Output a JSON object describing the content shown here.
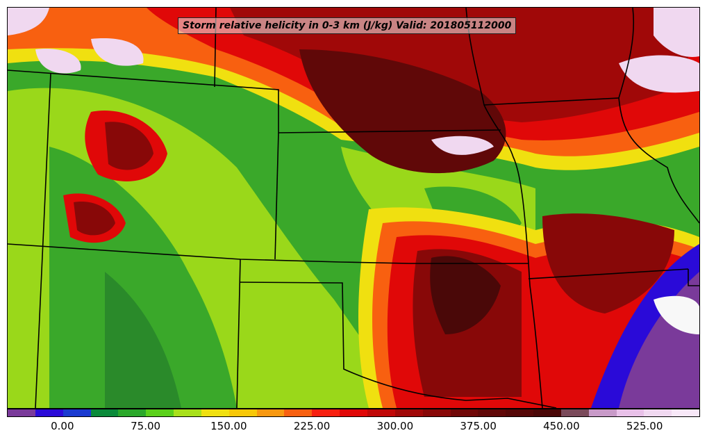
{
  "title": "Storm relative helicity in 0-3 km (J/kg) Valid: 201805112000",
  "colorbar": {
    "colors": [
      "#7a3a9a",
      "#2a0ad8",
      "#1a3ad0",
      "#0a8a3a",
      "#2aa82a",
      "#5ad01a",
      "#a8e01a",
      "#f0e010",
      "#f8c808",
      "#f89810",
      "#f86010",
      "#f82010",
      "#e00808",
      "#c00808",
      "#a00808",
      "#880808",
      "#700808",
      "#600808",
      "#550808",
      "#4a0808",
      "#7a4a5a",
      "#c89ac8",
      "#e8c0e8",
      "#f0d8f0",
      "#f8e8f8"
    ],
    "tick_labels": [
      "0.00",
      "75.00",
      "150.00",
      "225.00",
      "300.00",
      "375.00",
      "450.00",
      "525.00"
    ],
    "tick_values": [
      0,
      75,
      150,
      225,
      300,
      375,
      450,
      525
    ],
    "min": -50,
    "max": 575
  },
  "layers": {
    "states": "state-boundaries",
    "field": "helicity-contours"
  }
}
